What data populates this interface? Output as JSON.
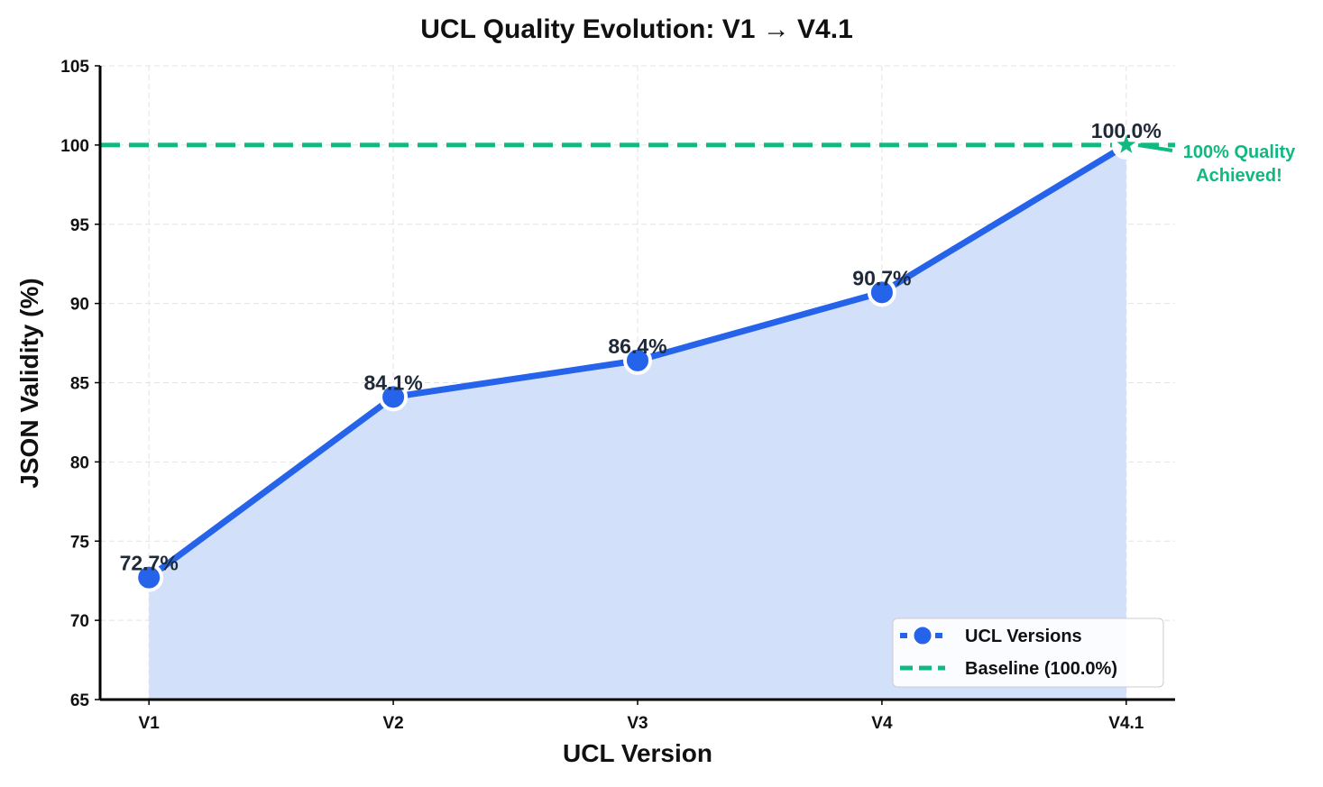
{
  "chart_data": {
    "type": "line",
    "title": "UCL Quality Evolution: V1 → V4.1",
    "xlabel": "UCL Version",
    "ylabel": "JSON Validity (%)",
    "categories": [
      "V1",
      "V2",
      "V3",
      "V4",
      "V4.1"
    ],
    "series": [
      {
        "name": "UCL Versions",
        "values": [
          72.7,
          84.1,
          86.4,
          90.7,
          100.0
        ],
        "color": "#2563eb",
        "fill": "#d2e0f9",
        "markers": "circle",
        "last_marker": "star"
      }
    ],
    "data_labels": [
      "72.7%",
      "84.1%",
      "86.4%",
      "90.7%",
      "100.0%"
    ],
    "baseline": {
      "name": "Baseline (100.0%)",
      "value": 100.0,
      "color": "#10b981",
      "style": "dashed"
    },
    "annotation": {
      "lines": [
        "100% Quality",
        "Achieved!"
      ],
      "color": "#10b981"
    },
    "ylim": [
      65,
      105
    ],
    "yticks": [
      65,
      70,
      75,
      80,
      85,
      90,
      95,
      100,
      105
    ],
    "grid": true,
    "legend_position": "bottom-right"
  }
}
